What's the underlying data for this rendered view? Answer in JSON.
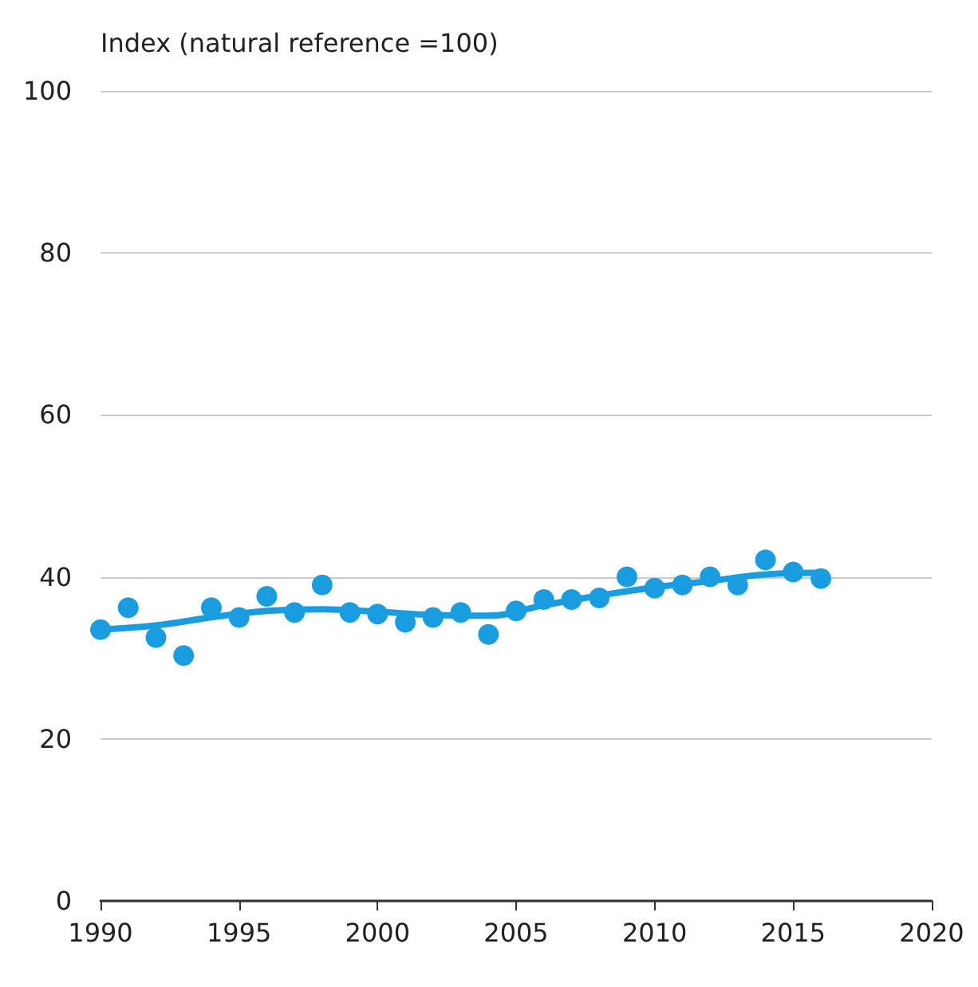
{
  "chart_data": {
    "type": "scatter",
    "ylabel": "Index (natural reference =100)",
    "xlim": [
      1990,
      2020
    ],
    "xticks": [
      1990,
      1995,
      2000,
      2005,
      2010,
      2015,
      2020
    ],
    "ylim": [
      0,
      100
    ],
    "yticks": [
      0,
      20,
      40,
      60,
      80,
      100
    ],
    "grid": "y",
    "series": [
      {
        "color": "#1a9de0",
        "marker": "circle",
        "x": [
          1990,
          1991,
          1992,
          1993,
          1994,
          1995,
          1996,
          1997,
          1998,
          1999,
          2000,
          2001,
          2002,
          2003,
          2004,
          2005,
          2006,
          2007,
          2008,
          2009,
          2010,
          2011,
          2012,
          2013,
          2014,
          2015,
          2016
        ],
        "values": [
          33.5,
          36.2,
          32.5,
          30.3,
          36.2,
          35,
          37.6,
          35.6,
          39,
          35.6,
          35.4,
          34.4,
          35,
          35.6,
          32.9,
          35.8,
          37.2,
          37.2,
          37.4,
          40,
          38.6,
          39,
          40,
          39,
          42.1,
          40.6,
          39.8
        ]
      },
      {
        "type": "line",
        "color": "#1a9de0",
        "line_style": "solid",
        "marker": "none",
        "x": [
          1990,
          1992,
          1994,
          1996,
          1998,
          2000,
          2002,
          2004,
          2006,
          2008,
          2010,
          2012,
          2014,
          2016
        ],
        "values": [
          33.5,
          34,
          35,
          35.8,
          36,
          35.7,
          35.3,
          35.2,
          36.5,
          37.7,
          38.7,
          39.5,
          40.3,
          40.5
        ]
      }
    ]
  }
}
